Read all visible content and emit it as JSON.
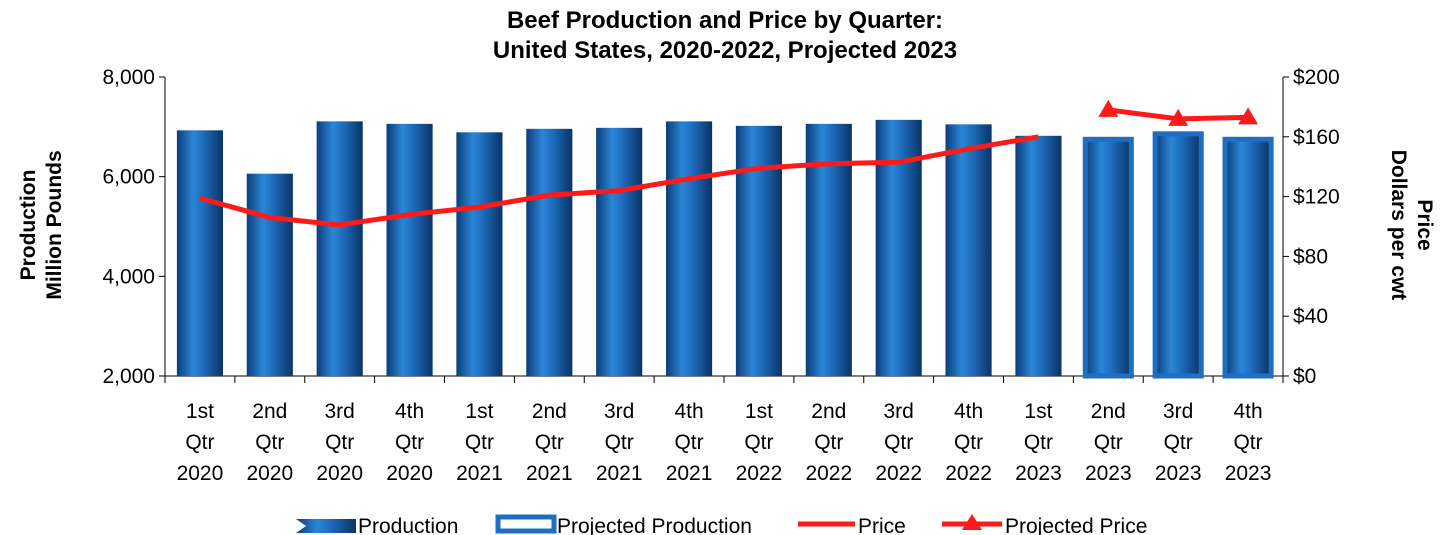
{
  "chart_data": {
    "type": "bar",
    "title_lines": [
      "Beef Production and Price by Quarter:",
      "United States, 2020-2022, Projected 2023"
    ],
    "y_left_label_lines": [
      "Production",
      "Million Pounds"
    ],
    "y_right_label_lines": [
      "Price",
      "Dollars per cwt"
    ],
    "y_left_lim": [
      2000,
      8000
    ],
    "y_left_ticks": [
      2000,
      4000,
      6000,
      8000
    ],
    "y_left_tick_labels": [
      "2,000",
      "4,000",
      "6,000",
      "8,000"
    ],
    "y_right_lim": [
      0,
      200
    ],
    "y_right_ticks": [
      0,
      40,
      80,
      120,
      160,
      200
    ],
    "y_right_tick_labels": [
      "$0",
      "$40",
      "$80",
      "$120",
      "$160",
      "$200"
    ],
    "categories": [
      [
        "1st",
        "Qtr",
        "2020"
      ],
      [
        "2nd",
        "Qtr",
        "2020"
      ],
      [
        "3rd",
        "Qtr",
        "2020"
      ],
      [
        "4th",
        "Qtr",
        "2020"
      ],
      [
        "1st",
        "Qtr",
        "2021"
      ],
      [
        "2nd",
        "Qtr",
        "2021"
      ],
      [
        "3rd",
        "Qtr",
        "2021"
      ],
      [
        "4th",
        "Qtr",
        "2021"
      ],
      [
        "1st",
        "Qtr",
        "2022"
      ],
      [
        "2nd",
        "Qtr",
        "2022"
      ],
      [
        "3rd",
        "Qtr",
        "2022"
      ],
      [
        "4th",
        "Qtr",
        "2022"
      ],
      [
        "1st",
        "Qtr",
        "2023"
      ],
      [
        "2nd",
        "Qtr",
        "2023"
      ],
      [
        "3rd",
        "Qtr",
        "2023"
      ],
      [
        "4th",
        "Qtr",
        "2023"
      ]
    ],
    "series": [
      {
        "name": "Production",
        "type": "bar",
        "axis": "left",
        "color": "#1f6fc0",
        "values": [
          6930,
          6060,
          7110,
          7060,
          6890,
          6960,
          6980,
          7110,
          7020,
          7060,
          7140,
          7050,
          6820,
          null,
          null,
          null
        ]
      },
      {
        "name": "Projected Production",
        "type": "bar",
        "axis": "left",
        "color": "#1f6fc0",
        "values": [
          null,
          null,
          null,
          null,
          null,
          null,
          null,
          null,
          null,
          null,
          null,
          null,
          null,
          6750,
          6860,
          6750
        ]
      },
      {
        "name": "Price",
        "type": "line",
        "axis": "right",
        "color": "#ff1a1a",
        "values": [
          119,
          106,
          101,
          108,
          113,
          121,
          124,
          132,
          139,
          142,
          143,
          152,
          160,
          null,
          null,
          null
        ]
      },
      {
        "name": "Projected Price",
        "type": "line",
        "axis": "right",
        "color": "#ff1a1a",
        "marker": "triangle",
        "values": [
          null,
          null,
          null,
          null,
          null,
          null,
          null,
          null,
          null,
          null,
          null,
          null,
          null,
          178,
          172,
          173
        ]
      }
    ],
    "legend_position": "bottom",
    "grid": false
  }
}
